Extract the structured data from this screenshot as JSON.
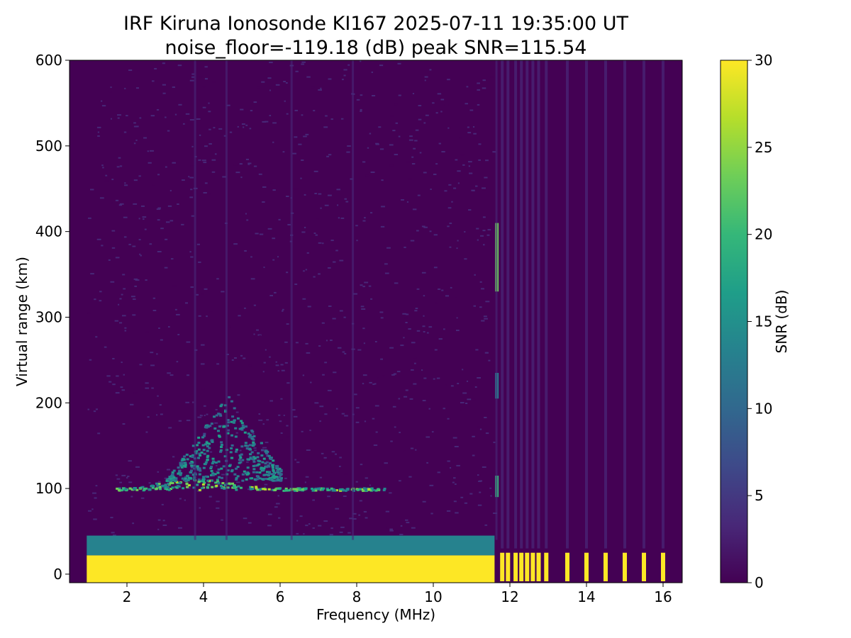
{
  "title_line1": "IRF Kiruna Ionosonde KI167 2025-07-11 19:35:00  UT",
  "title_line2": "noise_floor=-119.18 (dB) peak SNR=115.54",
  "chart_data": {
    "type": "heatmap",
    "xlabel": "Frequency (MHz)",
    "ylabel": "Virtual range (km)",
    "xlim": [
      0.5,
      16.5
    ],
    "ylim": [
      -10,
      600
    ],
    "xticks": [
      2,
      4,
      6,
      8,
      10,
      12,
      14,
      16
    ],
    "yticks": [
      0,
      100,
      200,
      300,
      400,
      500,
      600
    ],
    "colorbar": {
      "label": "SNR (dB)",
      "range": [
        0,
        30
      ],
      "ticks": [
        0,
        5,
        10,
        15,
        20,
        25,
        30
      ],
      "colormap": "viridis",
      "colors": [
        "#440154",
        "#482878",
        "#3e4989",
        "#31688e",
        "#26828e",
        "#1f9e89",
        "#35b779",
        "#6ece58",
        "#b5de2b",
        "#fde725"
      ]
    },
    "data_extent": {
      "freq_start": 0.95,
      "freq_end": 16.45
    },
    "features": [
      {
        "name": "ground clutter",
        "freq_range": [
          0.95,
          11.6
        ],
        "range_km": [
          -10,
          22
        ],
        "snr_db": 30
      },
      {
        "name": "low-range echo band",
        "freq_range": [
          0.95,
          11.6
        ],
        "range_km": [
          22,
          45
        ],
        "snr_db": 12
      },
      {
        "name": "E-layer trace",
        "freq_range": [
          1.7,
          8.7
        ],
        "range_km": [
          95,
          125
        ],
        "snr_db": 24
      },
      {
        "name": "F-region diffuse echoes",
        "freq_range": [
          3.0,
          6.0
        ],
        "range_km": [
          110,
          220
        ],
        "snr_db": 16
      },
      {
        "name": "interference spike",
        "freq": 11.65,
        "range_km": [
          330,
          410
        ],
        "snr_db": 22
      },
      {
        "name": "interference spike",
        "freq": 11.65,
        "range_km": [
          90,
          115
        ],
        "snr_db": 20
      },
      {
        "name": "interference spike",
        "freq": 11.65,
        "range_km": [
          205,
          235
        ],
        "snr_db": 14
      }
    ],
    "high_freq_channels": [
      11.8,
      11.95,
      12.15,
      12.3,
      12.45,
      12.6,
      12.75,
      12.95,
      13.5,
      14.0,
      14.5,
      15.0,
      15.5,
      16.0
    ]
  }
}
